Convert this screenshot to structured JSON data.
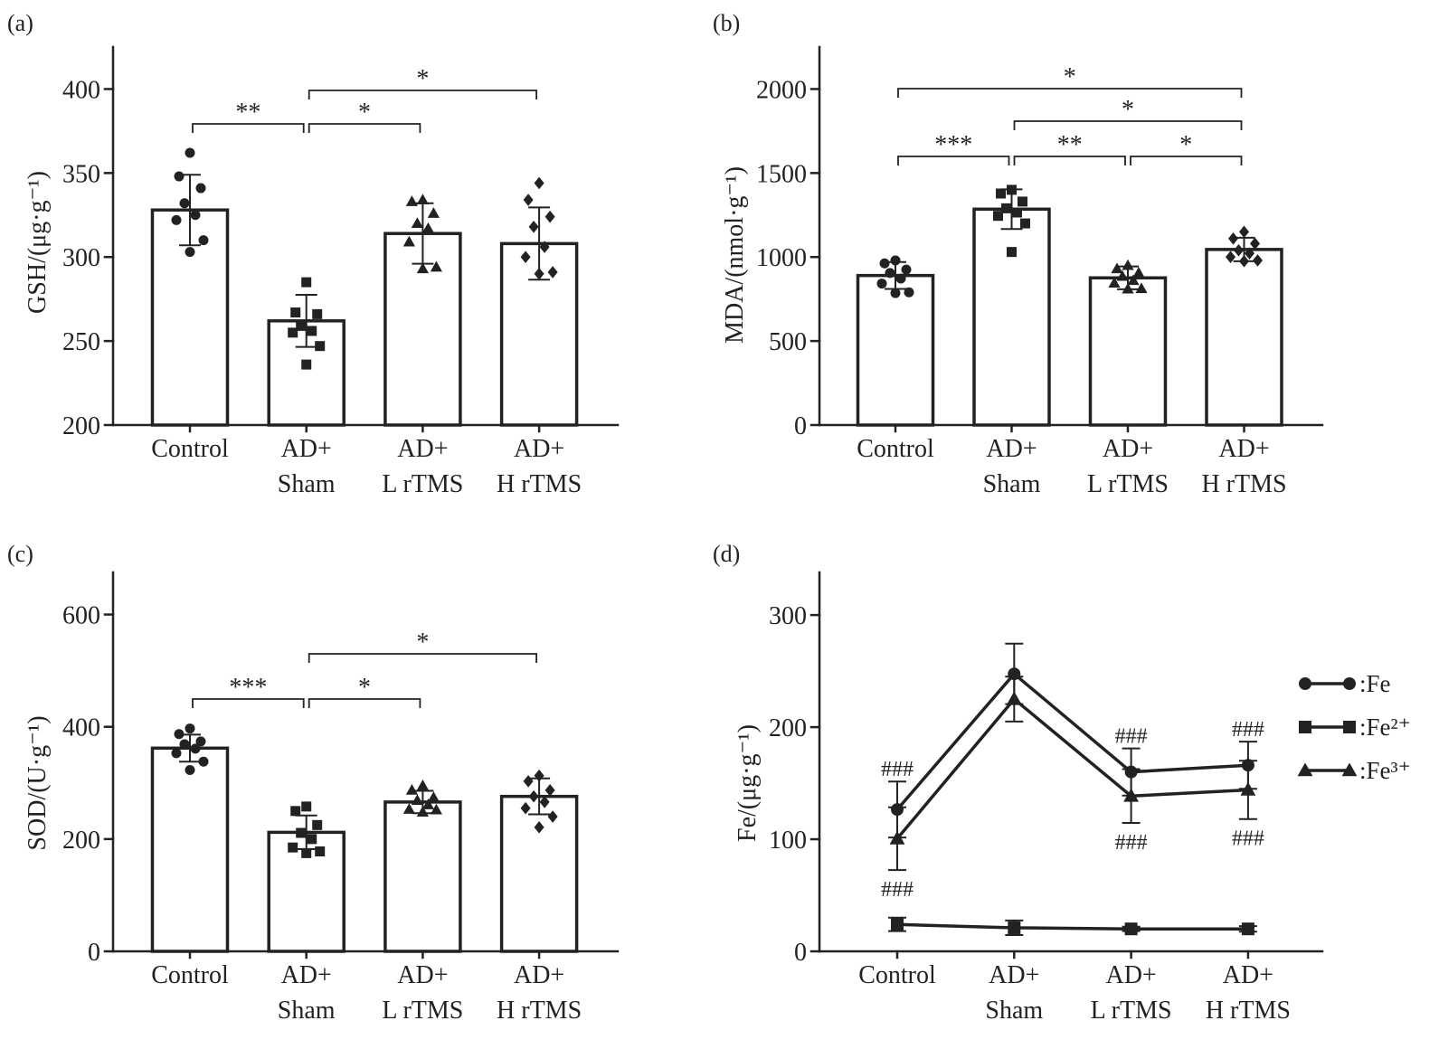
{
  "colors": {
    "ink": "#222222",
    "bar_fill": "#ffffff"
  },
  "chart_data": [
    {
      "panel": "(a)",
      "type": "bar",
      "categories": [
        [
          "Control"
        ],
        [
          "AD+",
          "Sham"
        ],
        [
          "AD+",
          "L rTMS"
        ],
        [
          "AD+",
          "H rTMS"
        ]
      ],
      "values": [
        328,
        262,
        314,
        308
      ],
      "errors": [
        21,
        15.5,
        18,
        21.5
      ],
      "points": [
        [
          362,
          348,
          341,
          332,
          325,
          322,
          310,
          303
        ],
        [
          285,
          267,
          266,
          259,
          256,
          255,
          247,
          236
        ],
        [
          334,
          333,
          326,
          320,
          317,
          309,
          294,
          293
        ],
        [
          344,
          334,
          324,
          318,
          306,
          300,
          291,
          290
        ]
      ],
      "point_markers": [
        "circle",
        "square",
        "triangle",
        "diamond"
      ],
      "ylabel": "GSH/(μg·g⁻¹)",
      "ylim": [
        200,
        425
      ],
      "yticks": [
        200,
        250,
        300,
        350,
        400
      ],
      "grid": false,
      "comparisons": [
        {
          "groups": [
            0,
            1
          ],
          "label": "**"
        },
        {
          "groups": [
            1,
            2
          ],
          "label": "*"
        },
        {
          "groups": [
            1,
            3
          ],
          "label": "*"
        }
      ]
    },
    {
      "panel": "(b)",
      "type": "bar",
      "categories": [
        [
          "Control"
        ],
        [
          "AD+",
          "Sham"
        ],
        [
          "AD+",
          "L rTMS"
        ],
        [
          "AD+",
          "H rTMS"
        ]
      ],
      "values": [
        890,
        1285,
        876,
        1045
      ],
      "errors": [
        80,
        118,
        68,
        70
      ],
      "points": [
        [
          980,
          962,
          925,
          905,
          872,
          842,
          790,
          785
        ],
        [
          1400,
          1378,
          1330,
          1290,
          1265,
          1245,
          1200,
          1030
        ],
        [
          950,
          930,
          905,
          885,
          860,
          845,
          812,
          810
        ],
        [
          1150,
          1110,
          1080,
          1040,
          1022,
          1000,
          980,
          975
        ]
      ],
      "point_markers": [
        "circle",
        "square",
        "triangle",
        "diamond"
      ],
      "ylabel": "MDA/(nmol·g⁻¹)",
      "ylim": [
        0,
        2250
      ],
      "yticks": [
        0,
        500,
        1000,
        1500,
        2000
      ],
      "grid": false,
      "comparisons": [
        {
          "groups": [
            0,
            3
          ],
          "label": "*"
        },
        {
          "groups": [
            1,
            3
          ],
          "label": "*"
        },
        {
          "groups": [
            0,
            1
          ],
          "label": "***"
        },
        {
          "groups": [
            1,
            2
          ],
          "label": "**"
        },
        {
          "groups": [
            2,
            3
          ],
          "label": "*"
        }
      ]
    },
    {
      "panel": "(c)",
      "type": "bar",
      "categories": [
        [
          "Control"
        ],
        [
          "AD+",
          "Sham"
        ],
        [
          "AD+",
          "L rTMS"
        ],
        [
          "AD+",
          "H rTMS"
        ]
      ],
      "values": [
        362,
        212,
        266,
        276
      ],
      "errors": [
        24,
        30,
        20,
        32
      ],
      "points": [
        [
          397,
          387,
          374,
          369,
          361,
          353,
          338,
          323
        ],
        [
          258,
          250,
          225,
          211,
          200,
          185,
          178,
          175
        ],
        [
          295,
          287,
          274,
          269,
          261,
          253,
          252,
          248
        ],
        [
          313,
          303,
          287,
          276,
          266,
          255,
          240,
          221
        ]
      ],
      "point_markers": [
        "circle",
        "square",
        "triangle",
        "diamond"
      ],
      "ylabel": "SOD/(U·g⁻¹)",
      "ylim": [
        0,
        675
      ],
      "yticks": [
        0,
        200,
        400,
        600
      ],
      "grid": false,
      "comparisons": [
        {
          "groups": [
            0,
            1
          ],
          "label": "***"
        },
        {
          "groups": [
            1,
            2
          ],
          "label": "*"
        },
        {
          "groups": [
            1,
            3
          ],
          "label": "*"
        }
      ]
    },
    {
      "panel": "(d)",
      "type": "line",
      "categories": [
        [
          "Control"
        ],
        [
          "AD+",
          "Sham"
        ],
        [
          "AD+",
          "L rTMS"
        ],
        [
          "AD+",
          "H rTMS"
        ]
      ],
      "series": [
        {
          "name": ":Fe",
          "marker": "circle",
          "values": [
            126.5,
            247.5,
            160,
            166
          ],
          "errors": [
            25,
            27,
            21,
            21
          ]
        },
        {
          "name": ":Fe²⁺",
          "marker": "square",
          "values": [
            24,
            21,
            20,
            20
          ],
          "errors": [
            6,
            6.5,
            2,
            2.5
          ]
        },
        {
          "name": ":Fe³⁺",
          "marker": "triangle",
          "values": [
            100.5,
            225,
            138.5,
            144
          ],
          "errors": [
            28,
            20,
            24,
            26
          ]
        }
      ],
      "ylabel": "Fe/(μg·g⁻¹)",
      "ylim": [
        0,
        338
      ],
      "yticks": [
        0,
        100,
        200,
        300
      ],
      "grid": false,
      "legend": "right",
      "annotations": [
        {
          "series": 0,
          "index": 0,
          "label": "###",
          "position": "above"
        },
        {
          "series": 0,
          "index": 2,
          "label": "###",
          "position": "above"
        },
        {
          "series": 0,
          "index": 3,
          "label": "###",
          "position": "above"
        },
        {
          "series": 2,
          "index": 0,
          "label": "###",
          "position": "below"
        },
        {
          "series": 2,
          "index": 2,
          "label": "###",
          "position": "below"
        },
        {
          "series": 2,
          "index": 3,
          "label": "###",
          "position": "below"
        }
      ]
    }
  ]
}
